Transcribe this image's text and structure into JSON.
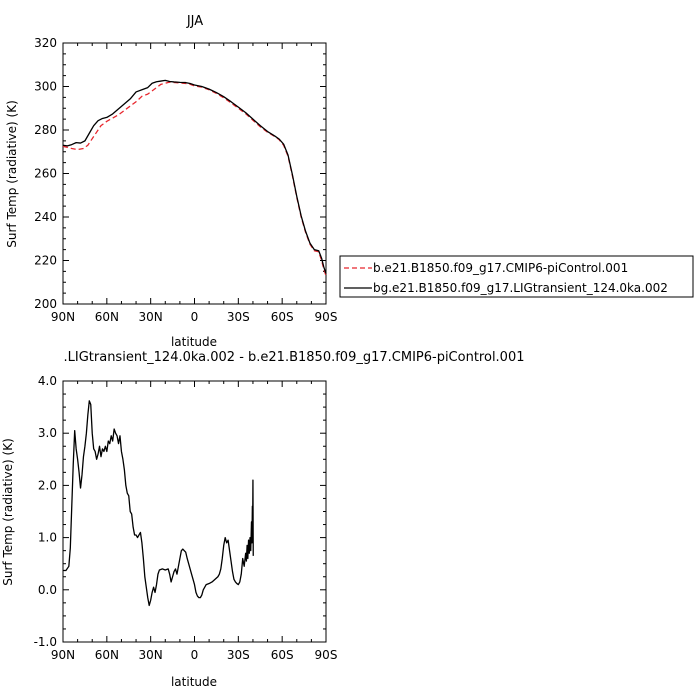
{
  "chart_data": [
    {
      "type": "line",
      "title": "JJA",
      "xlabel": "latitude",
      "ylabel": "Surf Temp (radiative) (K)",
      "xlim": [
        90,
        -90
      ],
      "ylim": [
        200,
        320
      ],
      "xticks": [
        90,
        60,
        30,
        0,
        -30,
        -60,
        -90
      ],
      "xtick_labels": [
        "90N",
        "60N",
        "30N",
        "0",
        "30S",
        "60S",
        "90S"
      ],
      "yticks": [
        200,
        220,
        240,
        260,
        280,
        300,
        320
      ],
      "ytick_labels": [
        "200",
        "220",
        "240",
        "260",
        "280",
        "300",
        "320"
      ],
      "legend": "right, outside plot",
      "series": [
        {
          "name": "b.e21.B1850.f09_g17.CMIP6-piControl.001",
          "color": "#e8262d",
          "dash": "dashed",
          "points": [
            [
              90,
              272.5
            ],
            [
              87,
              272
            ],
            [
              84,
              271.5
            ],
            [
              80,
              271
            ],
            [
              76,
              271.5
            ],
            [
              73,
              273
            ],
            [
              70,
              276
            ],
            [
              67,
              279
            ],
            [
              64,
              282
            ],
            [
              60,
              284
            ],
            [
              56,
              285.5
            ],
            [
              52,
              287
            ],
            [
              48,
              289
            ],
            [
              44,
              291
            ],
            [
              40,
              293
            ],
            [
              36,
              295.5
            ],
            [
              32,
              296.5
            ],
            [
              29,
              298
            ],
            [
              26,
              299.5
            ],
            [
              23,
              301
            ],
            [
              20,
              301.5
            ],
            [
              17,
              302
            ],
            [
              13,
              301.8
            ],
            [
              10,
              301.6
            ],
            [
              6,
              301.4
            ],
            [
              3,
              301
            ],
            [
              0,
              300.3
            ],
            [
              -5,
              299.7
            ],
            [
              -10,
              298.5
            ],
            [
              -15,
              296.8
            ],
            [
              -20,
              294.8
            ],
            [
              -25,
              292.5
            ],
            [
              -30,
              290
            ],
            [
              -35,
              287.5
            ],
            [
              -40,
              284.5
            ],
            [
              -45,
              281.5
            ],
            [
              -50,
              279
            ],
            [
              -55,
              277
            ],
            [
              -58,
              275.5
            ],
            [
              -61,
              273
            ],
            [
              -64,
              268
            ],
            [
              -67,
              259
            ],
            [
              -70,
              249
            ],
            [
              -73,
              240
            ],
            [
              -76,
              233
            ],
            [
              -79,
              227.5
            ],
            [
              -82,
              224.5
            ],
            [
              -85,
              224
            ],
            [
              -87,
              220
            ],
            [
              -88.5,
              216
            ],
            [
              -90,
              213
            ]
          ]
        },
        {
          "name": "bg.e21.B1850.f09_g17.LIGtransient_124.0ka.002",
          "color": "#000000",
          "dash": "solid",
          "points": [
            [
              90,
              273
            ],
            [
              87,
              272.7
            ],
            [
              84,
              273.3
            ],
            [
              81,
              274.2
            ],
            [
              78,
              274
            ],
            [
              75,
              275
            ],
            [
              72,
              278.5
            ],
            [
              69,
              282
            ],
            [
              66,
              284.3
            ],
            [
              63,
              285.3
            ],
            [
              60,
              285.8
            ],
            [
              56,
              287.4
            ],
            [
              52,
              289.7
            ],
            [
              48,
              292
            ],
            [
              44,
              294.3
            ],
            [
              40,
              297.5
            ],
            [
              36,
              298.5
            ],
            [
              32,
              299.5
            ],
            [
              29,
              301.5
            ],
            [
              26,
              302.2
            ],
            [
              23,
              302.5
            ],
            [
              20,
              302.8
            ],
            [
              17,
              302.3
            ],
            [
              14,
              302.1
            ],
            [
              10,
              301.9
            ],
            [
              6,
              301.8
            ],
            [
              3,
              301.4
            ],
            [
              0,
              300.7
            ],
            [
              -5,
              300
            ],
            [
              -10,
              298.8
            ],
            [
              -15,
              297.2
            ],
            [
              -20,
              295.3
            ],
            [
              -25,
              293
            ],
            [
              -30,
              290.5
            ],
            [
              -35,
              288
            ],
            [
              -40,
              285
            ],
            [
              -45,
              282
            ],
            [
              -50,
              279.3
            ],
            [
              -55,
              277.2
            ],
            [
              -58,
              275.8
            ],
            [
              -61,
              273.5
            ],
            [
              -64,
              268.5
            ],
            [
              -67,
              259.5
            ],
            [
              -70,
              249.5
            ],
            [
              -73,
              240.5
            ],
            [
              -76,
              233.5
            ],
            [
              -79,
              228
            ],
            [
              -82,
              225
            ],
            [
              -85,
              224.5
            ],
            [
              -87,
              221
            ],
            [
              -88.5,
              217
            ],
            [
              -90,
              214
            ]
          ]
        }
      ]
    },
    {
      "type": "line",
      "title": ".LIGtransient_124.0ka.002 - b.e21.B1850.f09_g17.CMIP6-piControl.001",
      "xlabel": "latitude",
      "ylabel": "Surf Temp (radiative) (K)",
      "xlim": [
        90,
        -90
      ],
      "ylim": [
        -1,
        4
      ],
      "xticks": [
        90,
        60,
        30,
        0,
        -30,
        -60,
        -90
      ],
      "xtick_labels": [
        "90N",
        "60N",
        "30N",
        "0",
        "30S",
        "60S",
        "90S"
      ],
      "yticks": [
        -1,
        0,
        1,
        2,
        3,
        4
      ],
      "ytick_labels": [
        "-1.0",
        "0.0",
        "1.0",
        "2.0",
        "3.0",
        "4.0"
      ],
      "series": [
        {
          "name": "",
          "color": "#000000",
          "dash": "solid",
          "points": [
            [
              90,
              0.37
            ],
            [
              88,
              0.37
            ],
            [
              86,
              0.45
            ],
            [
              85,
              0.8
            ],
            [
              84,
              1.6
            ],
            [
              83,
              2.4
            ],
            [
              82,
              3.05
            ],
            [
              81,
              2.7
            ],
            [
              80,
              2.5
            ],
            [
              79,
              2.25
            ],
            [
              78,
              1.95
            ],
            [
              77,
              2.2
            ],
            [
              76,
              2.55
            ],
            [
              75,
              2.75
            ],
            [
              74,
              3.0
            ],
            [
              73,
              3.35
            ],
            [
              72,
              3.62
            ],
            [
              71,
              3.55
            ],
            [
              70,
              3.0
            ],
            [
              69,
              2.7
            ],
            [
              68,
              2.65
            ],
            [
              67,
              2.5
            ],
            [
              66,
              2.6
            ],
            [
              65,
              2.75
            ],
            [
              64,
              2.55
            ],
            [
              63,
              2.7
            ],
            [
              62,
              2.65
            ],
            [
              61,
              2.75
            ],
            [
              60,
              2.65
            ],
            [
              59,
              2.85
            ],
            [
              58,
              2.8
            ],
            [
              57,
              2.95
            ],
            [
              56,
              2.85
            ],
            [
              55,
              3.08
            ],
            [
              54,
              3.0
            ],
            [
              53,
              2.95
            ],
            [
              52,
              2.8
            ],
            [
              51,
              2.95
            ],
            [
              50,
              2.65
            ],
            [
              49,
              2.5
            ],
            [
              48,
              2.3
            ],
            [
              47,
              2.0
            ],
            [
              46,
              1.85
            ],
            [
              45,
              1.8
            ],
            [
              44,
              1.5
            ],
            [
              43,
              1.45
            ],
            [
              42,
              1.2
            ],
            [
              41,
              1.05
            ],
            [
              40,
              1.05
            ],
            [
              39,
              1.0
            ],
            [
              38,
              1.05
            ],
            [
              37,
              1.1
            ],
            [
              36,
              0.9
            ],
            [
              35,
              0.6
            ],
            [
              34,
              0.25
            ],
            [
              33,
              0.05
            ],
            [
              32,
              -0.15
            ],
            [
              31,
              -0.3
            ],
            [
              30,
              -0.2
            ],
            [
              29,
              -0.05
            ],
            [
              28,
              0.05
            ],
            [
              27,
              -0.05
            ],
            [
              26,
              0.1
            ],
            [
              25,
              0.3
            ],
            [
              24,
              0.38
            ],
            [
              22,
              0.4
            ],
            [
              20,
              0.38
            ],
            [
              18,
              0.4
            ],
            [
              17,
              0.3
            ],
            [
              16,
              0.15
            ],
            [
              15,
              0.25
            ],
            [
              14,
              0.35
            ],
            [
              13,
              0.4
            ],
            [
              12,
              0.3
            ],
            [
              11,
              0.45
            ],
            [
              10,
              0.6
            ],
            [
              9,
              0.75
            ],
            [
              8,
              0.78
            ],
            [
              7,
              0.75
            ],
            [
              6,
              0.72
            ],
            [
              5,
              0.6
            ],
            [
              4,
              0.5
            ],
            [
              3,
              0.4
            ],
            [
              2,
              0.3
            ],
            [
              1,
              0.2
            ],
            [
              0,
              0.1
            ],
            [
              -1,
              -0.05
            ],
            [
              -2,
              -0.12
            ],
            [
              -3,
              -0.15
            ],
            [
              -4,
              -0.15
            ],
            [
              -5,
              -0.1
            ],
            [
              -6,
              0.0
            ],
            [
              -7,
              0.05
            ],
            [
              -8,
              0.1
            ],
            [
              -10,
              0.12
            ],
            [
              -12,
              0.15
            ],
            [
              -14,
              0.2
            ],
            [
              -16,
              0.25
            ],
            [
              -17,
              0.3
            ],
            [
              -18,
              0.4
            ],
            [
              -19,
              0.6
            ],
            [
              -20,
              0.85
            ],
            [
              -21,
              1.0
            ],
            [
              -22,
              0.9
            ],
            [
              -23,
              0.95
            ],
            [
              -24,
              0.75
            ],
            [
              -25,
              0.55
            ],
            [
              -26,
              0.35
            ],
            [
              -27,
              0.2
            ],
            [
              -28,
              0.15
            ],
            [
              -29,
              0.12
            ],
            [
              -30,
              0.1
            ],
            [
              -31,
              0.15
            ],
            [
              -32,
              0.3
            ],
            [
              -33,
              0.6
            ],
            [
              -34,
              0.45
            ],
            [
              -35,
              0.7
            ],
            [
              -35.5,
              0.55
            ],
            [
              -36,
              0.85
            ],
            [
              -36.5,
              0.6
            ],
            [
              -37,
              0.95
            ],
            [
              -37.5,
              0.7
            ],
            [
              -38,
              1.0
            ],
            [
              -38.5,
              0.75
            ],
            [
              -39,
              1.3
            ],
            [
              -39.3,
              0.9
            ],
            [
              -39.6,
              1.6
            ],
            [
              -39.8,
              1.2
            ],
            [
              -40,
              2.1
            ],
            [
              -40.2,
              0.65
            ]
          ]
        }
      ]
    }
  ]
}
